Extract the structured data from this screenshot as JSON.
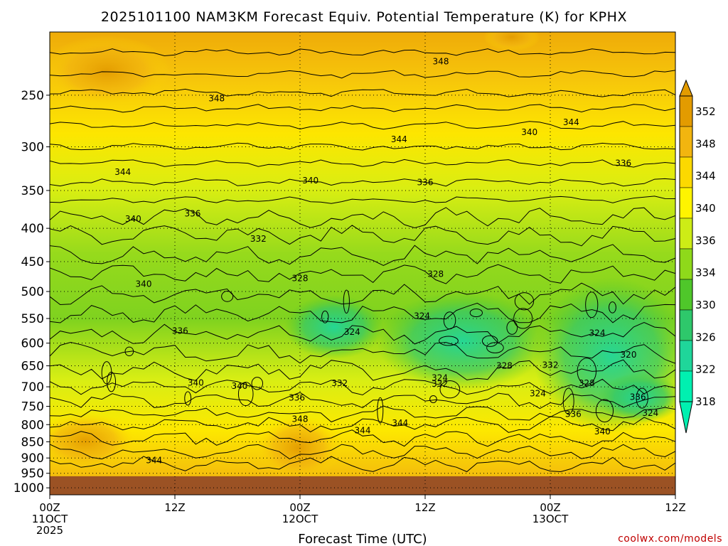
{
  "chart_data": {
    "type": "heatmap",
    "title": "2025101100 NAM3KM Forecast Equiv. Potential Temperature (K) for KPHX",
    "xlabel": "Forecast Time (UTC)",
    "ylabel": "",
    "x_ticks": [
      {
        "label": "00Z",
        "sub": [
          "11OCT",
          "2025"
        ],
        "hour": 0
      },
      {
        "label": "12Z",
        "sub": [],
        "hour": 12
      },
      {
        "label": "00Z",
        "sub": [
          "12OCT"
        ],
        "hour": 24
      },
      {
        "label": "12Z",
        "sub": [],
        "hour": 36
      },
      {
        "label": "00Z",
        "sub": [
          "13OCT"
        ],
        "hour": 48
      },
      {
        "label": "12Z",
        "sub": [],
        "hour": 60
      }
    ],
    "x_range_hours": [
      0,
      60
    ],
    "y_ticks": [
      "250",
      "300",
      "350",
      "400",
      "450",
      "500",
      "550",
      "600",
      "650",
      "700",
      "750",
      "800",
      "850",
      "900",
      "950",
      "1000"
    ],
    "y_range_hpa": [
      200,
      1025
    ],
    "y_scale": "log",
    "colorbar": {
      "labels": [
        "352",
        "348",
        "344",
        "340",
        "336",
        "334",
        "330",
        "326",
        "322",
        "318"
      ],
      "colors": [
        "#e39b00",
        "#f2b50f",
        "#fcd900",
        "#fff400",
        "#cdec16",
        "#8fd91a",
        "#4fc72a",
        "#2ec86b",
        "#1fd69a",
        "#00f0b0"
      ],
      "extend": "both"
    },
    "ground_color": "#9b5224",
    "ground_top_hpa": 960,
    "contour_labels": [
      {
        "text": "348",
        "hour": 37.5,
        "hpa": 222
      },
      {
        "text": "348",
        "hour": 16,
        "hpa": 253
      },
      {
        "text": "344",
        "hour": 50,
        "hpa": 275
      },
      {
        "text": "340",
        "hour": 46,
        "hpa": 285
      },
      {
        "text": "344",
        "hour": 33.5,
        "hpa": 292
      },
      {
        "text": "336",
        "hour": 55,
        "hpa": 318
      },
      {
        "text": "344",
        "hour": 7,
        "hpa": 328
      },
      {
        "text": "340",
        "hour": 25,
        "hpa": 338
      },
      {
        "text": "336",
        "hour": 36,
        "hpa": 340
      },
      {
        "text": "336",
        "hour": 13.7,
        "hpa": 380
      },
      {
        "text": "340",
        "hour": 8,
        "hpa": 387
      },
      {
        "text": "332",
        "hour": 20,
        "hpa": 415
      },
      {
        "text": "328",
        "hour": 24,
        "hpa": 477
      },
      {
        "text": "328",
        "hour": 37,
        "hpa": 470
      },
      {
        "text": "340",
        "hour": 9,
        "hpa": 487
      },
      {
        "text": "324",
        "hour": 35.7,
        "hpa": 545
      },
      {
        "text": "324",
        "hour": 29,
        "hpa": 577
      },
      {
        "text": "336",
        "hour": 12.5,
        "hpa": 575
      },
      {
        "text": "324",
        "hour": 52.5,
        "hpa": 579
      },
      {
        "text": "320",
        "hour": 55.5,
        "hpa": 625
      },
      {
        "text": "328",
        "hour": 43.6,
        "hpa": 650
      },
      {
        "text": "332",
        "hour": 48,
        "hpa": 648
      },
      {
        "text": "324",
        "hour": 37.4,
        "hpa": 678
      },
      {
        "text": "332",
        "hour": 37.4,
        "hpa": 693
      },
      {
        "text": "332",
        "hour": 27.8,
        "hpa": 691
      },
      {
        "text": "328",
        "hour": 51.5,
        "hpa": 691
      },
      {
        "text": "340",
        "hour": 14,
        "hpa": 690
      },
      {
        "text": "340",
        "hour": 18.2,
        "hpa": 698
      },
      {
        "text": "324",
        "hour": 46.8,
        "hpa": 717
      },
      {
        "text": "336",
        "hour": 23.7,
        "hpa": 728
      },
      {
        "text": "336",
        "hour": 56.4,
        "hpa": 726
      },
      {
        "text": "324",
        "hour": 57.6,
        "hpa": 768
      },
      {
        "text": "336",
        "hour": 50.2,
        "hpa": 771
      },
      {
        "text": "348",
        "hour": 24,
        "hpa": 785
      },
      {
        "text": "344",
        "hour": 33.6,
        "hpa": 795
      },
      {
        "text": "344",
        "hour": 30,
        "hpa": 817
      },
      {
        "text": "340",
        "hour": 53,
        "hpa": 820
      },
      {
        "text": "344",
        "hour": 10,
        "hpa": 907
      }
    ]
  },
  "credit": "coolwx.com/models"
}
